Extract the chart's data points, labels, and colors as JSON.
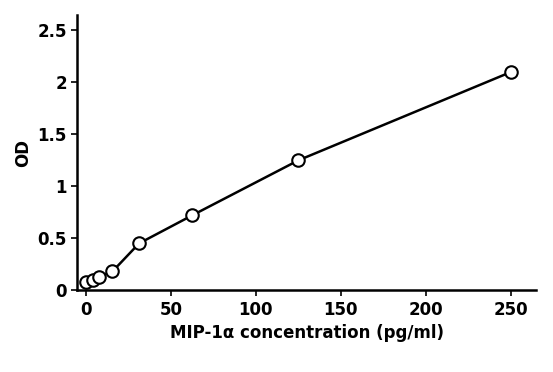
{
  "x": [
    0,
    3.9,
    7.8,
    15.6,
    31.25,
    62.5,
    125,
    250
  ],
  "y": [
    0.08,
    0.1,
    0.13,
    0.18,
    0.45,
    0.72,
    1.25,
    2.1
  ],
  "xlabel": "MIP-1α concentration (pg/ml)",
  "ylabel": "OD",
  "xlim": [
    -5,
    265
  ],
  "ylim": [
    0,
    2.65
  ],
  "xticks": [
    0,
    50,
    100,
    150,
    200,
    250
  ],
  "yticks": [
    0,
    0.5,
    1.0,
    1.5,
    2.0,
    2.5
  ],
  "ytick_labels": [
    "0",
    "0.5",
    "1",
    "1.5",
    "2",
    "2.5"
  ],
  "line_color": "#000000",
  "marker_facecolor": "#ffffff",
  "marker_edgecolor": "#000000",
  "marker_size": 9,
  "marker_linewidth": 1.5,
  "line_width": 1.8,
  "xlabel_fontsize": 12,
  "ylabel_fontsize": 12,
  "tick_fontsize": 12,
  "background_color": "#ffffff",
  "spine_linewidth": 1.8
}
